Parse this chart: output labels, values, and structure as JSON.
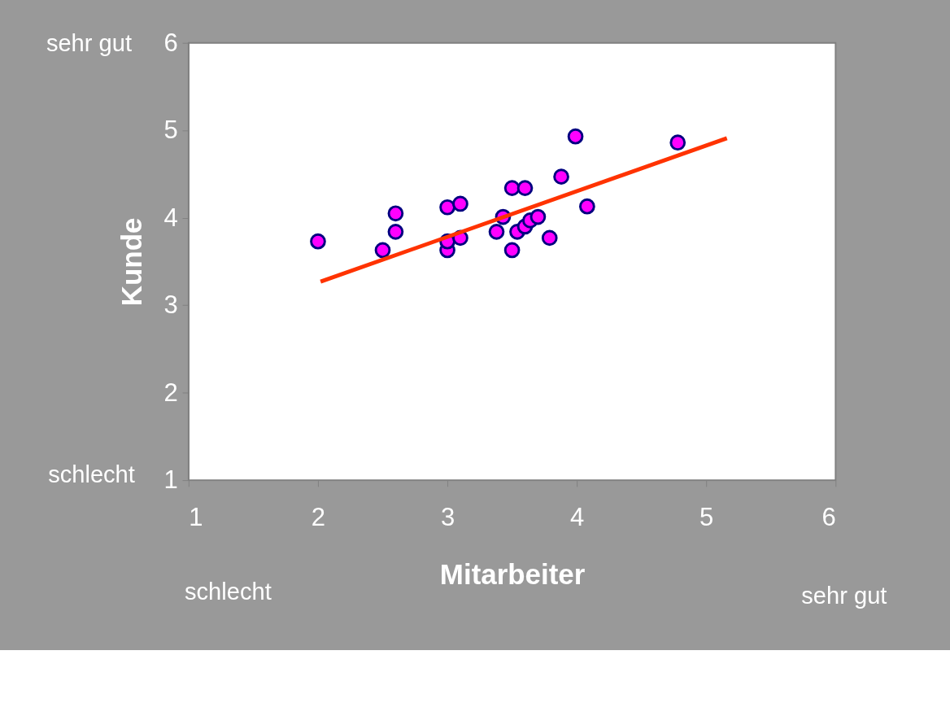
{
  "chart_data": {
    "type": "scatter",
    "xlabel": "Mitarbeiter",
    "ylabel": "Kunde",
    "annotations": [
      "sehr gut",
      "schlecht",
      "schlecht",
      "sehr gut"
    ],
    "xlim": [
      1,
      6
    ],
    "ylim": [
      1,
      6
    ],
    "xticks": [
      1,
      2,
      3,
      4,
      5,
      6
    ],
    "yticks": [
      1,
      2,
      3,
      4,
      5,
      6
    ],
    "grid": false,
    "marker": "circle",
    "series": [
      {
        "color": "#ff00ff",
        "x": [
          2.0,
          2.5,
          2.6,
          2.6,
          3.0,
          3.1,
          3.0,
          3.0,
          3.1,
          3.38,
          3.43,
          3.5,
          3.6,
          3.5,
          3.54,
          3.6,
          3.64,
          3.7,
          3.79,
          3.88,
          3.99,
          4.08,
          4.78
        ],
        "values": [
          3.73,
          3.63,
          3.84,
          4.05,
          4.12,
          4.16,
          3.63,
          3.73,
          3.77,
          3.84,
          4.01,
          4.34,
          4.34,
          3.63,
          3.84,
          3.9,
          3.97,
          4.01,
          3.77,
          4.47,
          4.93,
          4.13,
          4.86
        ]
      },
      {
        "type": "line",
        "color": "#ff3300",
        "x": [
          2.02,
          5.16
        ],
        "values": [
          3.27,
          4.91
        ],
        "line_style": "solid",
        "marker": "none"
      }
    ]
  }
}
